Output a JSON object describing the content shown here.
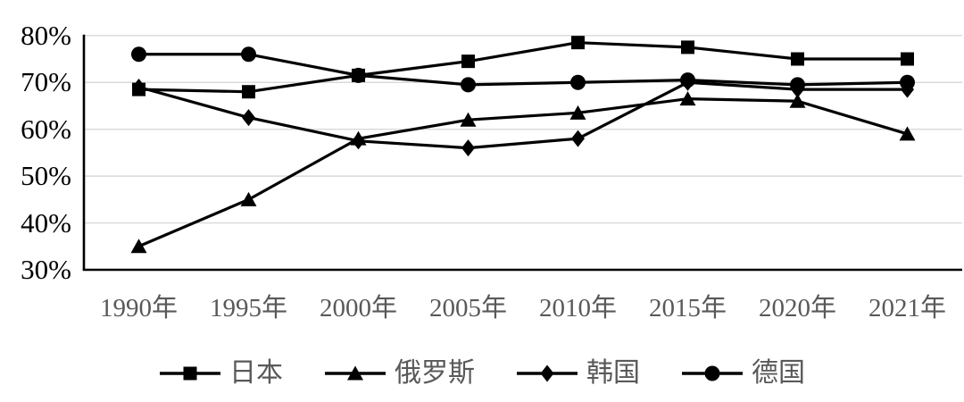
{
  "chart_data": {
    "type": "line",
    "title": "",
    "categories": [
      "1990年",
      "1995年",
      "2000年",
      "2005年",
      "2010年",
      "2015年",
      "2020年",
      "2021年"
    ],
    "y_ticks": [
      {
        "label": "80%",
        "value": 80
      },
      {
        "label": "70%",
        "value": 70
      },
      {
        "label": "60%",
        "value": 60
      },
      {
        "label": "50%",
        "value": 50
      },
      {
        "label": "40%",
        "value": 40
      },
      {
        "label": "30%",
        "value": 30
      }
    ],
    "ylim": [
      30,
      80
    ],
    "grid": true,
    "legend_position": "bottom",
    "series": [
      {
        "name": "日本",
        "key": "japan",
        "marker": "square",
        "color": "#000000",
        "values": [
          68.5,
          68,
          71.5,
          74.5,
          78.5,
          77.5,
          75,
          75
        ]
      },
      {
        "name": "俄罗斯",
        "key": "russia",
        "marker": "triangle",
        "color": "#000000",
        "values": [
          35,
          45,
          58,
          62,
          63.5,
          66.5,
          66,
          59
        ]
      },
      {
        "name": "韩国",
        "key": "korea",
        "marker": "diamond",
        "color": "#000000",
        "values": [
          69,
          62.5,
          57.5,
          56,
          58,
          70,
          68.5,
          68.5
        ]
      },
      {
        "name": "德国",
        "key": "germany",
        "marker": "circle",
        "color": "#000000",
        "values": [
          76,
          76,
          71.5,
          69.5,
          70,
          70.5,
          69.5,
          70
        ]
      }
    ],
    "colors": {
      "background": "#ffffff",
      "gridline": "#d9d9d9",
      "axis": "#000000",
      "y_tick_label": "#000000",
      "x_tick_label": "#595959",
      "legend_label": "#595959"
    }
  }
}
